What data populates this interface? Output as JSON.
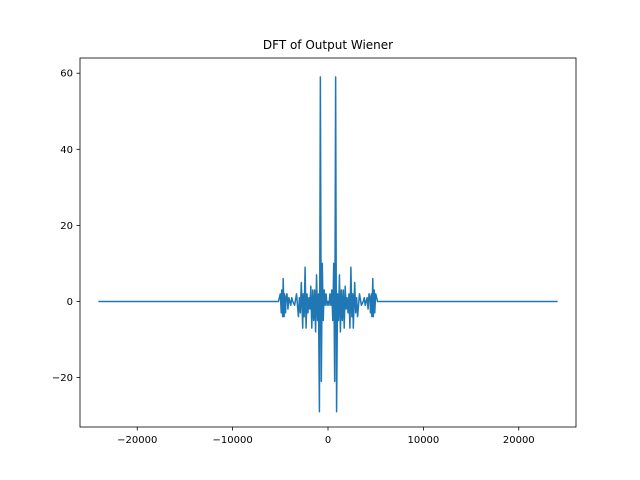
{
  "chart_data": {
    "type": "line",
    "title": "DFT of Output Wiener",
    "xlabel": "",
    "ylabel": "",
    "xlim": [
      -26000,
      26000
    ],
    "ylim": [
      -33,
      64
    ],
    "grid": false,
    "x_ticks": [
      -20000,
      -10000,
      0,
      10000,
      20000
    ],
    "x_tick_labels": [
      "−20000",
      "−10000",
      "0",
      "10000",
      "20000"
    ],
    "y_ticks": [
      -20,
      0,
      20,
      40,
      60
    ],
    "y_tick_labels": [
      "−20",
      "0",
      "20",
      "40",
      "60"
    ],
    "series": [
      {
        "color": "#1f77b4",
        "x": [
          -24000,
          -5200,
          -5000,
          -4900,
          -4850,
          -4750,
          -4700,
          -4600,
          -4550,
          -4450,
          -4400,
          -4300,
          -4200,
          -4100,
          -3900,
          -3800,
          -3700,
          -3500,
          -3300,
          -3100,
          -3000,
          -2900,
          -2800,
          -2650,
          -2600,
          -2500,
          -2400,
          -2300,
          -2200,
          -2100,
          -2000,
          -1900,
          -1800,
          -1700,
          -1600,
          -1500,
          -1400,
          -1300,
          -1200,
          -1100,
          -1000,
          -900,
          -800,
          -700,
          -600,
          -500,
          -400,
          -300,
          -200,
          -100,
          0,
          100,
          200,
          300,
          400,
          500,
          600,
          700,
          800,
          900,
          1000,
          1100,
          1200,
          1300,
          1400,
          1500,
          1600,
          1700,
          1800,
          1900,
          2000,
          2100,
          2200,
          2300,
          2400,
          2500,
          2600,
          2650,
          2800,
          2900,
          3000,
          3100,
          3300,
          3500,
          3700,
          3800,
          3900,
          4100,
          4200,
          4300,
          4400,
          4450,
          4550,
          4600,
          4700,
          4750,
          4850,
          4900,
          5000,
          5200,
          24000
        ],
        "y": [
          0,
          0,
          2,
          -3,
          3,
          -4,
          6,
          -4,
          2,
          -3,
          1,
          2,
          -2,
          1,
          -1,
          1,
          0,
          -1,
          2,
          -4,
          1,
          -3,
          5,
          -7,
          2,
          -4,
          9,
          -7,
          2,
          -3,
          1,
          -2,
          4,
          -7,
          3,
          -5,
          3,
          -8,
          7,
          -5,
          2,
          -29,
          59,
          -21,
          10,
          -5,
          3,
          -1,
          2,
          -1,
          0,
          -1,
          2,
          -1,
          3,
          -5,
          10,
          -21,
          59,
          -29,
          2,
          -5,
          7,
          -8,
          3,
          -5,
          3,
          -7,
          4,
          -2,
          1,
          -3,
          2,
          -7,
          9,
          -4,
          2,
          -7,
          5,
          -3,
          1,
          -4,
          2,
          -1,
          0,
          1,
          -1,
          1,
          -2,
          2,
          1,
          -3,
          2,
          -4,
          6,
          -4,
          3,
          -3,
          2,
          0,
          0
        ]
      }
    ]
  }
}
